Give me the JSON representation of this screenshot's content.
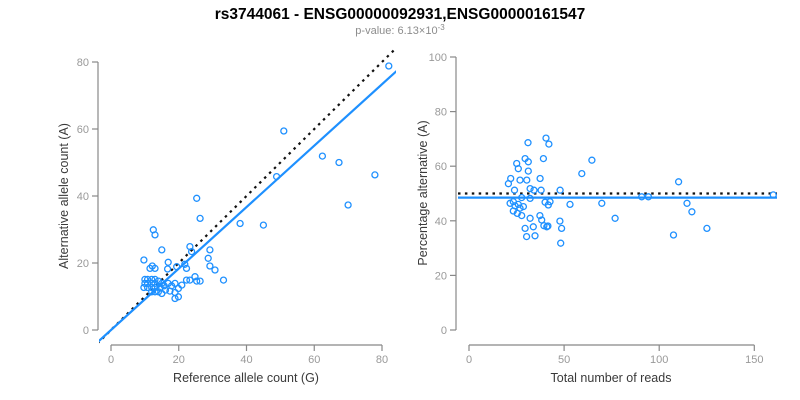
{
  "title": "rs3744061 - ENSG00000092931,ENSG00000161547",
  "subtitle": {
    "text": "p-value: 6.13×10",
    "exponent": "-3"
  },
  "colors": {
    "accent_blue": "#1e90ff",
    "dotted_black": "#111111",
    "axis_gray": "#888888",
    "tick_label_gray": "#999999",
    "axis_title_dark": "#3a3a3a",
    "background": "#ffffff"
  },
  "chart_data": [
    {
      "type": "scatter",
      "xlabel": "Reference allele count (G)",
      "ylabel": "Alternative allele count (A)",
      "xlim": [
        0,
        80
      ],
      "ylim": [
        0,
        80
      ],
      "xticks": [
        0,
        20,
        40,
        60,
        80
      ],
      "yticks": [
        0,
        20,
        40,
        60,
        80
      ],
      "grid": false,
      "marker": "open-circle",
      "lines": [
        {
          "name": "identity-expected",
          "style": "dotted",
          "color": "#111111",
          "slope": 1,
          "intercept": 0
        },
        {
          "name": "fitted-ratio",
          "style": "solid",
          "color": "#1e90ff",
          "slope": 0.917,
          "intercept": 0
        }
      ],
      "points": [
        [
          9.7,
          12.7
        ],
        [
          9.7,
          20.9
        ],
        [
          10,
          15.1
        ],
        [
          10,
          13.9
        ],
        [
          10.8,
          15.1
        ],
        [
          10.8,
          13.9
        ],
        [
          10.8,
          12.7
        ],
        [
          11.5,
          18.4
        ],
        [
          12,
          15.1
        ],
        [
          12,
          13.9
        ],
        [
          12,
          12.7
        ],
        [
          12,
          11.4
        ],
        [
          12.2,
          19.1
        ],
        [
          12.5,
          29.9
        ],
        [
          13,
          28.4
        ],
        [
          13,
          18.4
        ],
        [
          13,
          15.1
        ],
        [
          13,
          13.9
        ],
        [
          13,
          12.7
        ],
        [
          13,
          11.4
        ],
        [
          14,
          14.6
        ],
        [
          14,
          11.4
        ],
        [
          14.5,
          12.7
        ],
        [
          15,
          23.9
        ],
        [
          15,
          13.9
        ],
        [
          15,
          10.9
        ],
        [
          15.7,
          13.2
        ],
        [
          16.1,
          11.9
        ],
        [
          16.7,
          18.2
        ],
        [
          16.9,
          20.2
        ],
        [
          16.9,
          13.9
        ],
        [
          17.4,
          11.6
        ],
        [
          17.9,
          13.2
        ],
        [
          18.9,
          13.9
        ],
        [
          18.9,
          11.2
        ],
        [
          18.9,
          9.4
        ],
        [
          19.4,
          18.9
        ],
        [
          19.9,
          12.4
        ],
        [
          19.9,
          9.9
        ],
        [
          20.9,
          13.4
        ],
        [
          21.8,
          19.6
        ],
        [
          22.3,
          18.4
        ],
        [
          22.3,
          14.9
        ],
        [
          23.3,
          24.9
        ],
        [
          23.3,
          14.9
        ],
        [
          23.8,
          23.4
        ],
        [
          24.8,
          15.9
        ],
        [
          25.3,
          39.3
        ],
        [
          25.3,
          14.6
        ],
        [
          26.3,
          33.3
        ],
        [
          26.3,
          14.6
        ],
        [
          28.7,
          21.4
        ],
        [
          29.2,
          23.9
        ],
        [
          29.2,
          19.1
        ],
        [
          30.7,
          17.9
        ],
        [
          33.2,
          14.9
        ],
        [
          38.1,
          31.8
        ],
        [
          45,
          31.3
        ],
        [
          48.9,
          45.8
        ],
        [
          51,
          59.4
        ],
        [
          62.4,
          51.9
        ],
        [
          67.3,
          50
        ],
        [
          70,
          37.3
        ],
        [
          77.9,
          46.3
        ],
        [
          82,
          78.8
        ]
      ]
    },
    {
      "type": "scatter",
      "xlabel": "Total number of reads",
      "ylabel": "Percentage alternative (A)",
      "xlim": [
        0,
        150
      ],
      "ylim": [
        0,
        100
      ],
      "xticks": [
        0,
        50,
        100,
        150
      ],
      "yticks": [
        0,
        20,
        40,
        60,
        80,
        100
      ],
      "grid": false,
      "marker": "open-circle",
      "lines": [
        {
          "name": "expected-50pct",
          "style": "dotted",
          "color": "#111111",
          "y": 50
        },
        {
          "name": "fitted-pct",
          "style": "solid",
          "color": "#1e90ff",
          "y": 48.5
        }
      ],
      "points": [
        [
          31,
          68.6
        ],
        [
          40.5,
          70.3
        ],
        [
          42,
          68.1
        ],
        [
          29.5,
          62.8
        ],
        [
          31.2,
          61.6
        ],
        [
          39.1,
          62.8
        ],
        [
          64.6,
          62.2
        ],
        [
          25.1,
          61
        ],
        [
          25.9,
          59.1
        ],
        [
          31.2,
          58.2
        ],
        [
          59.3,
          57.3
        ],
        [
          21.9,
          55.5
        ],
        [
          26.8,
          54.9
        ],
        [
          30.4,
          54.9
        ],
        [
          37.4,
          55.5
        ],
        [
          110.2,
          54.3
        ],
        [
          20.7,
          53.6
        ],
        [
          23.9,
          51.2
        ],
        [
          32.1,
          51.8
        ],
        [
          34.2,
          51.2
        ],
        [
          37.9,
          51.2
        ],
        [
          47.9,
          51.2
        ],
        [
          90.8,
          48.8
        ],
        [
          94.3,
          48.8
        ],
        [
          160,
          49.5
        ],
        [
          27.7,
          48.5
        ],
        [
          32.1,
          48.2
        ],
        [
          21.6,
          46.4
        ],
        [
          23.3,
          47
        ],
        [
          24.2,
          45.5
        ],
        [
          25.9,
          46
        ],
        [
          26.8,
          44.6
        ],
        [
          28.6,
          45.2
        ],
        [
          40,
          46.8
        ],
        [
          41.7,
          45.8
        ],
        [
          42.6,
          47
        ],
        [
          53.1,
          46
        ],
        [
          69.8,
          46.4
        ],
        [
          114.6,
          46.4
        ],
        [
          23.3,
          43.6
        ],
        [
          25.4,
          42.7
        ],
        [
          27.7,
          41.9
        ],
        [
          32.1,
          40.9
        ],
        [
          37.3,
          41.9
        ],
        [
          38.2,
          40.3
        ],
        [
          39.4,
          38.2
        ],
        [
          40.9,
          37.8
        ],
        [
          41.5,
          38.1
        ],
        [
          29.5,
          37.2
        ],
        [
          33.8,
          37.8
        ],
        [
          30.3,
          34.2
        ],
        [
          34.7,
          34.5
        ],
        [
          47.8,
          39.9
        ],
        [
          48.7,
          37.2
        ],
        [
          48.2,
          31.8
        ],
        [
          76.8,
          40.9
        ],
        [
          107.5,
          34.8
        ],
        [
          117.2,
          43.3
        ],
        [
          125.1,
          37.2
        ]
      ]
    }
  ]
}
